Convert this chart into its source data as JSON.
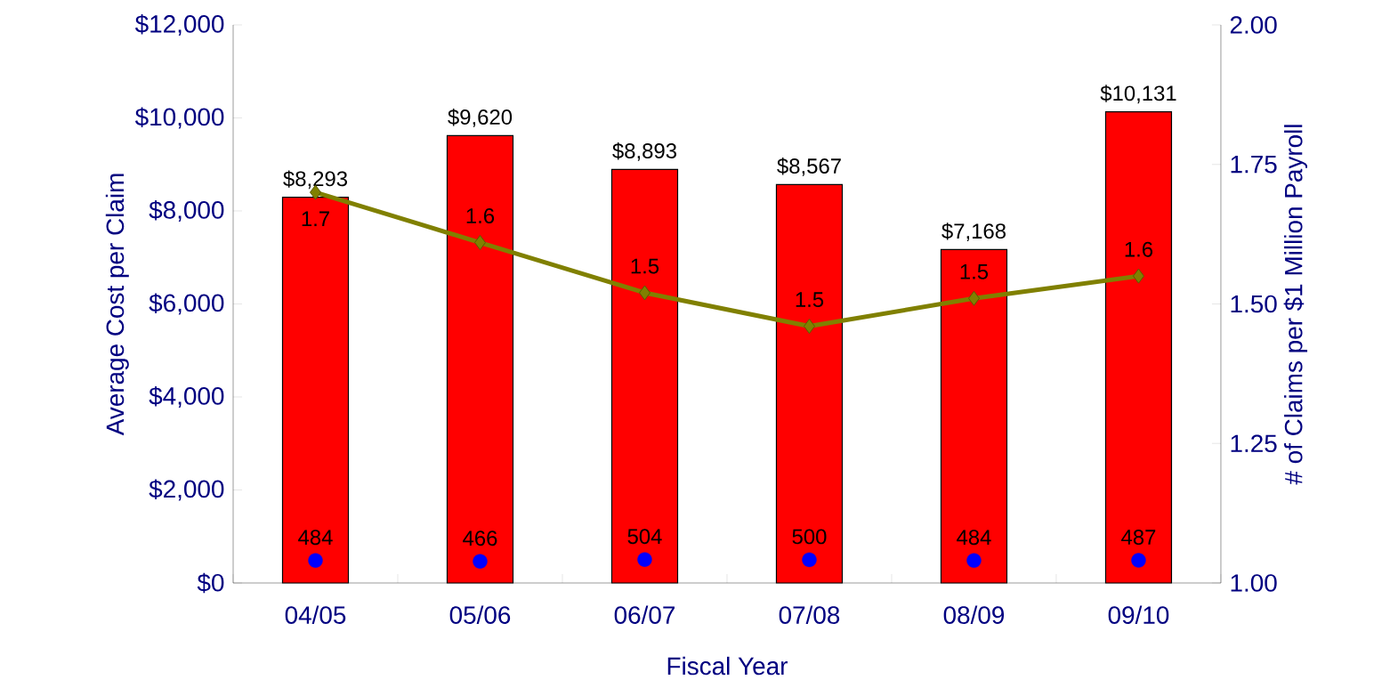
{
  "chart_data": {
    "type": "bar",
    "xlabel": "Fiscal Year",
    "ylabel": "Average Cost per Claim",
    "y2label": "# of Claims per $1 Million Payroll",
    "categories": [
      "04/05",
      "05/06",
      "06/07",
      "07/08",
      "08/09",
      "09/10"
    ],
    "ylim": [
      0,
      12000
    ],
    "yticks": [
      {
        "value": 0,
        "label": "$0"
      },
      {
        "value": 2000,
        "label": "$2,000"
      },
      {
        "value": 4000,
        "label": "$4,000"
      },
      {
        "value": 6000,
        "label": "$6,000"
      },
      {
        "value": 8000,
        "label": "$8,000"
      },
      {
        "value": 10000,
        "label": "$10,000"
      },
      {
        "value": 12000,
        "label": "$12,000"
      }
    ],
    "y2lim": [
      1,
      2
    ],
    "y2ticks": [
      {
        "value": 1,
        "label": "1.00"
      },
      {
        "value": 1.25,
        "label": "1.25"
      },
      {
        "value": 1.5,
        "label": "1.50"
      },
      {
        "value": 1.75,
        "label": "1.75"
      },
      {
        "value": 2,
        "label": "2.00"
      }
    ],
    "series": [
      {
        "color": "#ff0000",
        "values": [
          8293,
          9620,
          8893,
          8567,
          7168,
          10131
        ],
        "value_labels": [
          "$8,293",
          "$9,620",
          "$8,893",
          "$8,567",
          "$7,168",
          "$10,131"
        ]
      },
      {
        "type": "line",
        "axis": "y2",
        "color": "#808000",
        "marker": "diamond",
        "values": [
          1.7,
          1.61,
          1.52,
          1.46,
          1.51,
          1.55
        ],
        "value_labels": [
          "1.7",
          "1.6",
          "1.5",
          "1.5",
          "1.5",
          "1.6"
        ]
      },
      {
        "type": "scatter",
        "color": "#0000ff",
        "marker": "circle",
        "values": [
          484,
          466,
          504,
          500,
          484,
          487
        ],
        "value_labels": [
          "484",
          "466",
          "504",
          "500",
          "484",
          "487"
        ]
      }
    ],
    "grid": false,
    "legend": false
  }
}
